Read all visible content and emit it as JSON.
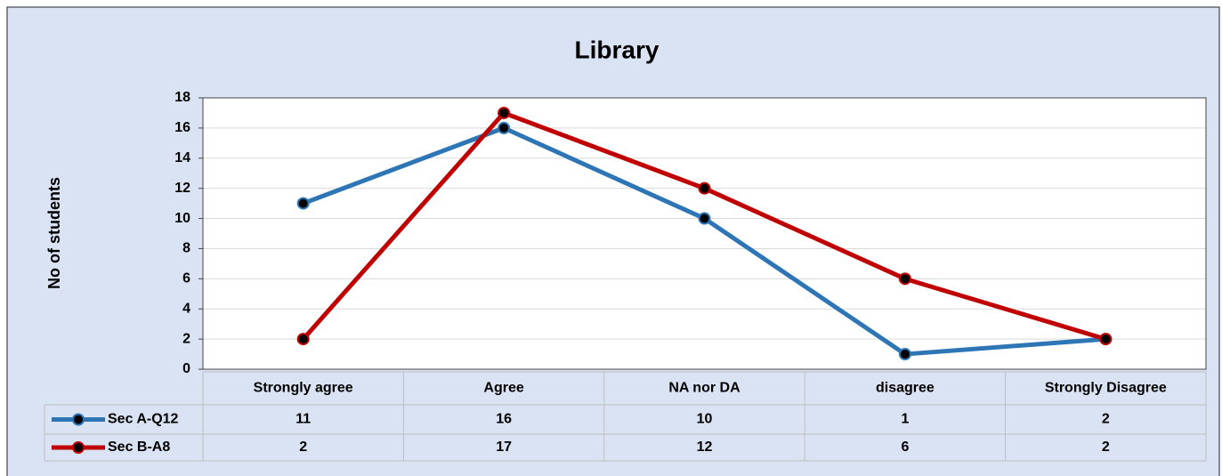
{
  "chart_data": {
    "type": "line",
    "title": "Library",
    "y_label": "No of  students",
    "categories": [
      "Strongly agree",
      "Agree",
      "NA nor DA",
      "disagree",
      "Strongly Disagree"
    ],
    "series": [
      {
        "name": "Sec A-Q12",
        "color": "#2e75b6",
        "values": [
          11,
          16,
          10,
          1,
          2
        ]
      },
      {
        "name": "Sec B-A8",
        "color": "#c00000",
        "values": [
          2,
          17,
          12,
          6,
          2
        ]
      }
    ],
    "ylim": [
      0,
      18
    ],
    "yticks": [
      0,
      2,
      4,
      6,
      8,
      10,
      12,
      14,
      16,
      18
    ],
    "grid": true,
    "data_table": true
  }
}
